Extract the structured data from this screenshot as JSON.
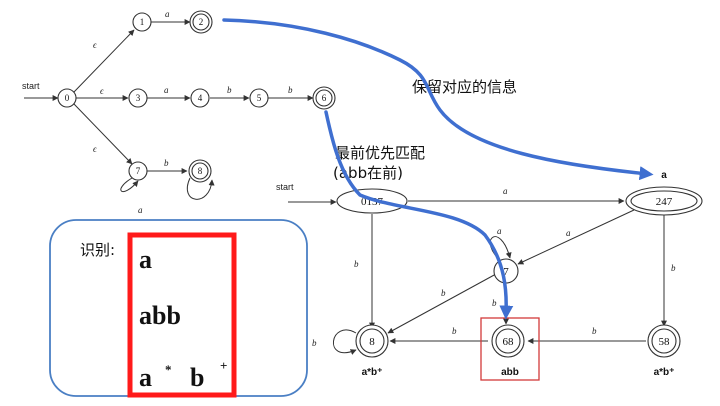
{
  "nfa": {
    "start_label": "start",
    "states": [
      "0",
      "1",
      "2",
      "3",
      "4",
      "5",
      "6",
      "7",
      "8"
    ],
    "edge_labels": {
      "eps_0_1": "ϵ",
      "eps_0_3": "ϵ",
      "eps_0_7": "ϵ",
      "a_1_2": "a",
      "a_3_4": "a",
      "b_4_5": "b",
      "b_5_6": "b",
      "a_7_loop": "a",
      "b_7_8": "b",
      "b_8_loop": "a"
    }
  },
  "dfa": {
    "start_label": "start",
    "states": {
      "s0137": "0137",
      "s247": "247",
      "s7": "7",
      "s8": "8",
      "s68": "68",
      "s58": "58"
    },
    "edge_labels": {
      "a_0137_247": "a",
      "b_0137_8": "b",
      "a_247_7": "a",
      "b_247_58": "b",
      "a_7_loop": "a",
      "b_7_8": "b",
      "b_7_68": "b",
      "b_8_loop": "b",
      "b_68_8": "b",
      "b_58_68": "b"
    },
    "accept_labels": {
      "above_247": "a",
      "below_8": "a*b⁺",
      "below_68": "abb",
      "below_58": "a*b⁺"
    }
  },
  "annotations": {
    "keep_info": "保留对应的信息",
    "longest_first": "最前优先匹配",
    "abb_first": "(abb在前)"
  },
  "recognize_box": {
    "label": "识别:",
    "patterns": [
      "a",
      "abb"
    ],
    "pattern3": {
      "a": "a",
      "star": "*",
      "b": "b",
      "plus": "+"
    }
  },
  "colors": {
    "blue_arrow": "#3f6fd0",
    "red_box": "#ff1a1a",
    "highlight_box": "#d23a3a",
    "rounded_box": "#4a7fc4"
  }
}
